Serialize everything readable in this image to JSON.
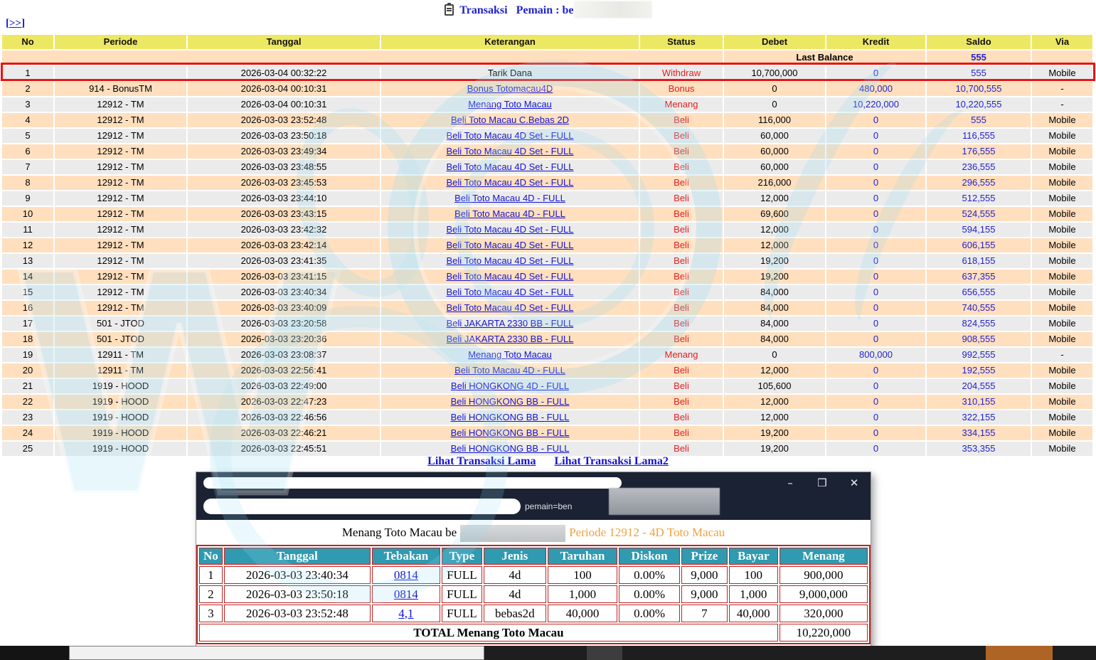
{
  "header": {
    "title": "Transaksi",
    "player_label": "Pemain : be"
  },
  "nav": {
    "skip_open": "[",
    "skip_link": ">>",
    "skip_close": "]"
  },
  "main_table": {
    "headers": [
      "No",
      "Periode",
      "Tanggal",
      "Keterangan",
      "Status",
      "Debet",
      "Kredit",
      "Saldo",
      "Via"
    ],
    "last_balance": {
      "label": "Last Balance",
      "saldo": "555"
    },
    "rows": [
      {
        "no": "1",
        "periode": "",
        "tanggal": "2026-03-04 00:32:22",
        "keterangan": "Tarik Dana",
        "is_link": false,
        "status": "Withdraw",
        "debet": "10,700,000",
        "kredit": "0",
        "saldo": "555",
        "via": "Mobile",
        "highlighted": true
      },
      {
        "no": "2",
        "periode": "914 - BonusTM",
        "tanggal": "2026-03-04 00:10:31",
        "keterangan": "Bonus Totomacau4D",
        "is_link": true,
        "status": "Bonus",
        "debet": "0",
        "kredit": "480,000",
        "saldo": "10,700,555",
        "via": "-"
      },
      {
        "no": "3",
        "periode": "12912 - TM",
        "tanggal": "2026-03-04 00:10:31",
        "keterangan": "Menang Toto Macau",
        "is_link": true,
        "status": "Menang",
        "debet": "0",
        "kredit": "10,220,000",
        "saldo": "10,220,555",
        "via": "-"
      },
      {
        "no": "4",
        "periode": "12912 - TM",
        "tanggal": "2026-03-03 23:52:48",
        "keterangan": "Beli Toto Macau C.Bebas 2D",
        "is_link": true,
        "status": "Beli",
        "debet": "116,000",
        "kredit": "0",
        "saldo": "555",
        "via": "Mobile"
      },
      {
        "no": "5",
        "periode": "12912 - TM",
        "tanggal": "2026-03-03 23:50:18",
        "keterangan": "Beli Toto Macau 4D Set - FULL",
        "is_link": true,
        "status": "Beli",
        "debet": "60,000",
        "kredit": "0",
        "saldo": "116,555",
        "via": "Mobile"
      },
      {
        "no": "6",
        "periode": "12912 - TM",
        "tanggal": "2026-03-03 23:49:34",
        "keterangan": "Beli Toto Macau 4D Set - FULL",
        "is_link": true,
        "status": "Beli",
        "debet": "60,000",
        "kredit": "0",
        "saldo": "176,555",
        "via": "Mobile"
      },
      {
        "no": "7",
        "periode": "12912 - TM",
        "tanggal": "2026-03-03 23:48:55",
        "keterangan": "Beli Toto Macau 4D Set - FULL",
        "is_link": true,
        "status": "Beli",
        "debet": "60,000",
        "kredit": "0",
        "saldo": "236,555",
        "via": "Mobile"
      },
      {
        "no": "8",
        "periode": "12912 - TM",
        "tanggal": "2026-03-03 23:45:53",
        "keterangan": "Beli Toto Macau 4D Set - FULL",
        "is_link": true,
        "status": "Beli",
        "debet": "216,000",
        "kredit": "0",
        "saldo": "296,555",
        "via": "Mobile"
      },
      {
        "no": "9",
        "periode": "12912 - TM",
        "tanggal": "2026-03-03 23:44:10",
        "keterangan": "Beli Toto Macau 4D - FULL",
        "is_link": true,
        "status": "Beli",
        "debet": "12,000",
        "kredit": "0",
        "saldo": "512,555",
        "via": "Mobile"
      },
      {
        "no": "10",
        "periode": "12912 - TM",
        "tanggal": "2026-03-03 23:43:15",
        "keterangan": "Beli Toto Macau 4D - FULL",
        "is_link": true,
        "status": "Beli",
        "debet": "69,600",
        "kredit": "0",
        "saldo": "524,555",
        "via": "Mobile"
      },
      {
        "no": "11",
        "periode": "12912 - TM",
        "tanggal": "2026-03-03 23:42:32",
        "keterangan": "Beli Toto Macau 4D Set - FULL",
        "is_link": true,
        "status": "Beli",
        "debet": "12,000",
        "kredit": "0",
        "saldo": "594,155",
        "via": "Mobile"
      },
      {
        "no": "12",
        "periode": "12912 - TM",
        "tanggal": "2026-03-03 23:42:14",
        "keterangan": "Beli Toto Macau 4D Set - FULL",
        "is_link": true,
        "status": "Beli",
        "debet": "12,000",
        "kredit": "0",
        "saldo": "606,155",
        "via": "Mobile"
      },
      {
        "no": "13",
        "periode": "12912 - TM",
        "tanggal": "2026-03-03 23:41:35",
        "keterangan": "Beli Toto Macau 4D Set - FULL",
        "is_link": true,
        "status": "Beli",
        "debet": "19,200",
        "kredit": "0",
        "saldo": "618,155",
        "via": "Mobile"
      },
      {
        "no": "14",
        "periode": "12912 - TM",
        "tanggal": "2026-03-03 23:41:15",
        "keterangan": "Beli Toto Macau 4D Set - FULL",
        "is_link": true,
        "status": "Beli",
        "debet": "19,200",
        "kredit": "0",
        "saldo": "637,355",
        "via": "Mobile"
      },
      {
        "no": "15",
        "periode": "12912 - TM",
        "tanggal": "2026-03-03 23:40:34",
        "keterangan": "Beli Toto Macau 4D Set - FULL",
        "is_link": true,
        "status": "Beli",
        "debet": "84,000",
        "kredit": "0",
        "saldo": "656,555",
        "via": "Mobile"
      },
      {
        "no": "16",
        "periode": "12912 - TM",
        "tanggal": "2026-03-03 23:40:09",
        "keterangan": "Beli Toto Macau 4D Set - FULL",
        "is_link": true,
        "status": "Beli",
        "debet": "84,000",
        "kredit": "0",
        "saldo": "740,555",
        "via": "Mobile"
      },
      {
        "no": "17",
        "periode": "501 - JTOD",
        "tanggal": "2026-03-03 23:20:58",
        "keterangan": "Beli JAKARTA 2330 BB - FULL",
        "is_link": true,
        "status": "Beli",
        "debet": "84,000",
        "kredit": "0",
        "saldo": "824,555",
        "via": "Mobile"
      },
      {
        "no": "18",
        "periode": "501 - JTOD",
        "tanggal": "2026-03-03 23:20:36",
        "keterangan": "Beli JAKARTA 2330 BB - FULL",
        "is_link": true,
        "status": "Beli",
        "debet": "84,000",
        "kredit": "0",
        "saldo": "908,555",
        "via": "Mobile"
      },
      {
        "no": "19",
        "periode": "12911 - TM",
        "tanggal": "2026-03-03 23:08:37",
        "keterangan": "Menang Toto Macau",
        "is_link": true,
        "status": "Menang",
        "debet": "0",
        "kredit": "800,000",
        "saldo": "992,555",
        "via": "-"
      },
      {
        "no": "20",
        "periode": "12911 - TM",
        "tanggal": "2026-03-03 22:56:41",
        "keterangan": "Beli Toto Macau 4D - FULL",
        "is_link": true,
        "status": "Beli",
        "debet": "12,000",
        "kredit": "0",
        "saldo": "192,555",
        "via": "Mobile"
      },
      {
        "no": "21",
        "periode": "1919 - HOOD",
        "tanggal": "2026-03-03 22:49:00",
        "keterangan": "Beli HONGKONG 4D - FULL",
        "is_link": true,
        "status": "Beli",
        "debet": "105,600",
        "kredit": "0",
        "saldo": "204,555",
        "via": "Mobile"
      },
      {
        "no": "22",
        "periode": "1919 - HOOD",
        "tanggal": "2026-03-03 22:47:23",
        "keterangan": "Beli HONGKONG BB - FULL",
        "is_link": true,
        "status": "Beli",
        "debet": "12,000",
        "kredit": "0",
        "saldo": "310,155",
        "via": "Mobile"
      },
      {
        "no": "23",
        "periode": "1919 - HOOD",
        "tanggal": "2026-03-03 22:46:56",
        "keterangan": "Beli HONGKONG BB - FULL",
        "is_link": true,
        "status": "Beli",
        "debet": "12,000",
        "kredit": "0",
        "saldo": "322,155",
        "via": "Mobile"
      },
      {
        "no": "24",
        "periode": "1919 - HOOD",
        "tanggal": "2026-03-03 22:46:21",
        "keterangan": "Beli HONGKONG BB - FULL",
        "is_link": true,
        "status": "Beli",
        "debet": "19,200",
        "kredit": "0",
        "saldo": "334,155",
        "via": "Mobile"
      },
      {
        "no": "25",
        "periode": "1919 - HOOD",
        "tanggal": "2026-03-03 22:45:51",
        "keterangan": "Beli HONGKONG BB - FULL",
        "is_link": true,
        "status": "Beli",
        "debet": "19,200",
        "kredit": "0",
        "saldo": "353,355",
        "via": "Mobile"
      }
    ]
  },
  "footer_links": {
    "lama": "Lihat Transaksi Lama",
    "lama2": "Lihat Transaksi Lama2"
  },
  "popup": {
    "window_controls": {
      "minimize": "–",
      "maximize": "❒",
      "close": "✕"
    },
    "url_fragment": "pemain=ben",
    "title_prefix": "Menang Toto Macau be",
    "title_suffix": "Periode 12912 - 4D Toto Macau",
    "table": {
      "headers": [
        "No",
        "Tanggal",
        "Tebakan",
        "Type",
        "Jenis",
        "Taruhan",
        "Diskon",
        "Prize",
        "Bayar",
        "Menang"
      ],
      "rows": [
        [
          "1",
          "2026-03-03 23:40:34",
          "0814",
          "FULL",
          "4d",
          "100",
          "0.00%",
          "9,000",
          "100",
          "900,000"
        ],
        [
          "2",
          "2026-03-03 23:50:18",
          "0814",
          "FULL",
          "4d",
          "1,000",
          "0.00%",
          "9,000",
          "1,000",
          "9,000,000"
        ],
        [
          "3",
          "2026-03-03 23:52:48",
          "4,1",
          "FULL",
          "bebas2d",
          "40,000",
          "0.00%",
          "7",
          "40,000",
          "320,000"
        ]
      ],
      "total_label": "TOTAL  Menang Toto Macau",
      "total_value": "10,220,000"
    }
  },
  "colors": {
    "header_yellow": "#ede863",
    "row_peach": "#ffdfbe",
    "row_gray": "#ebebeb",
    "status_red": "#e02020",
    "value_blue": "#2222cc",
    "link_blue": "#1414d2",
    "popup_teal": "#2f9ab0",
    "popup_border_red": "#c22222",
    "title_orange": "#f0a23c",
    "titlebar_navy": "#1b2233",
    "highlight_red": "#ec1212"
  }
}
